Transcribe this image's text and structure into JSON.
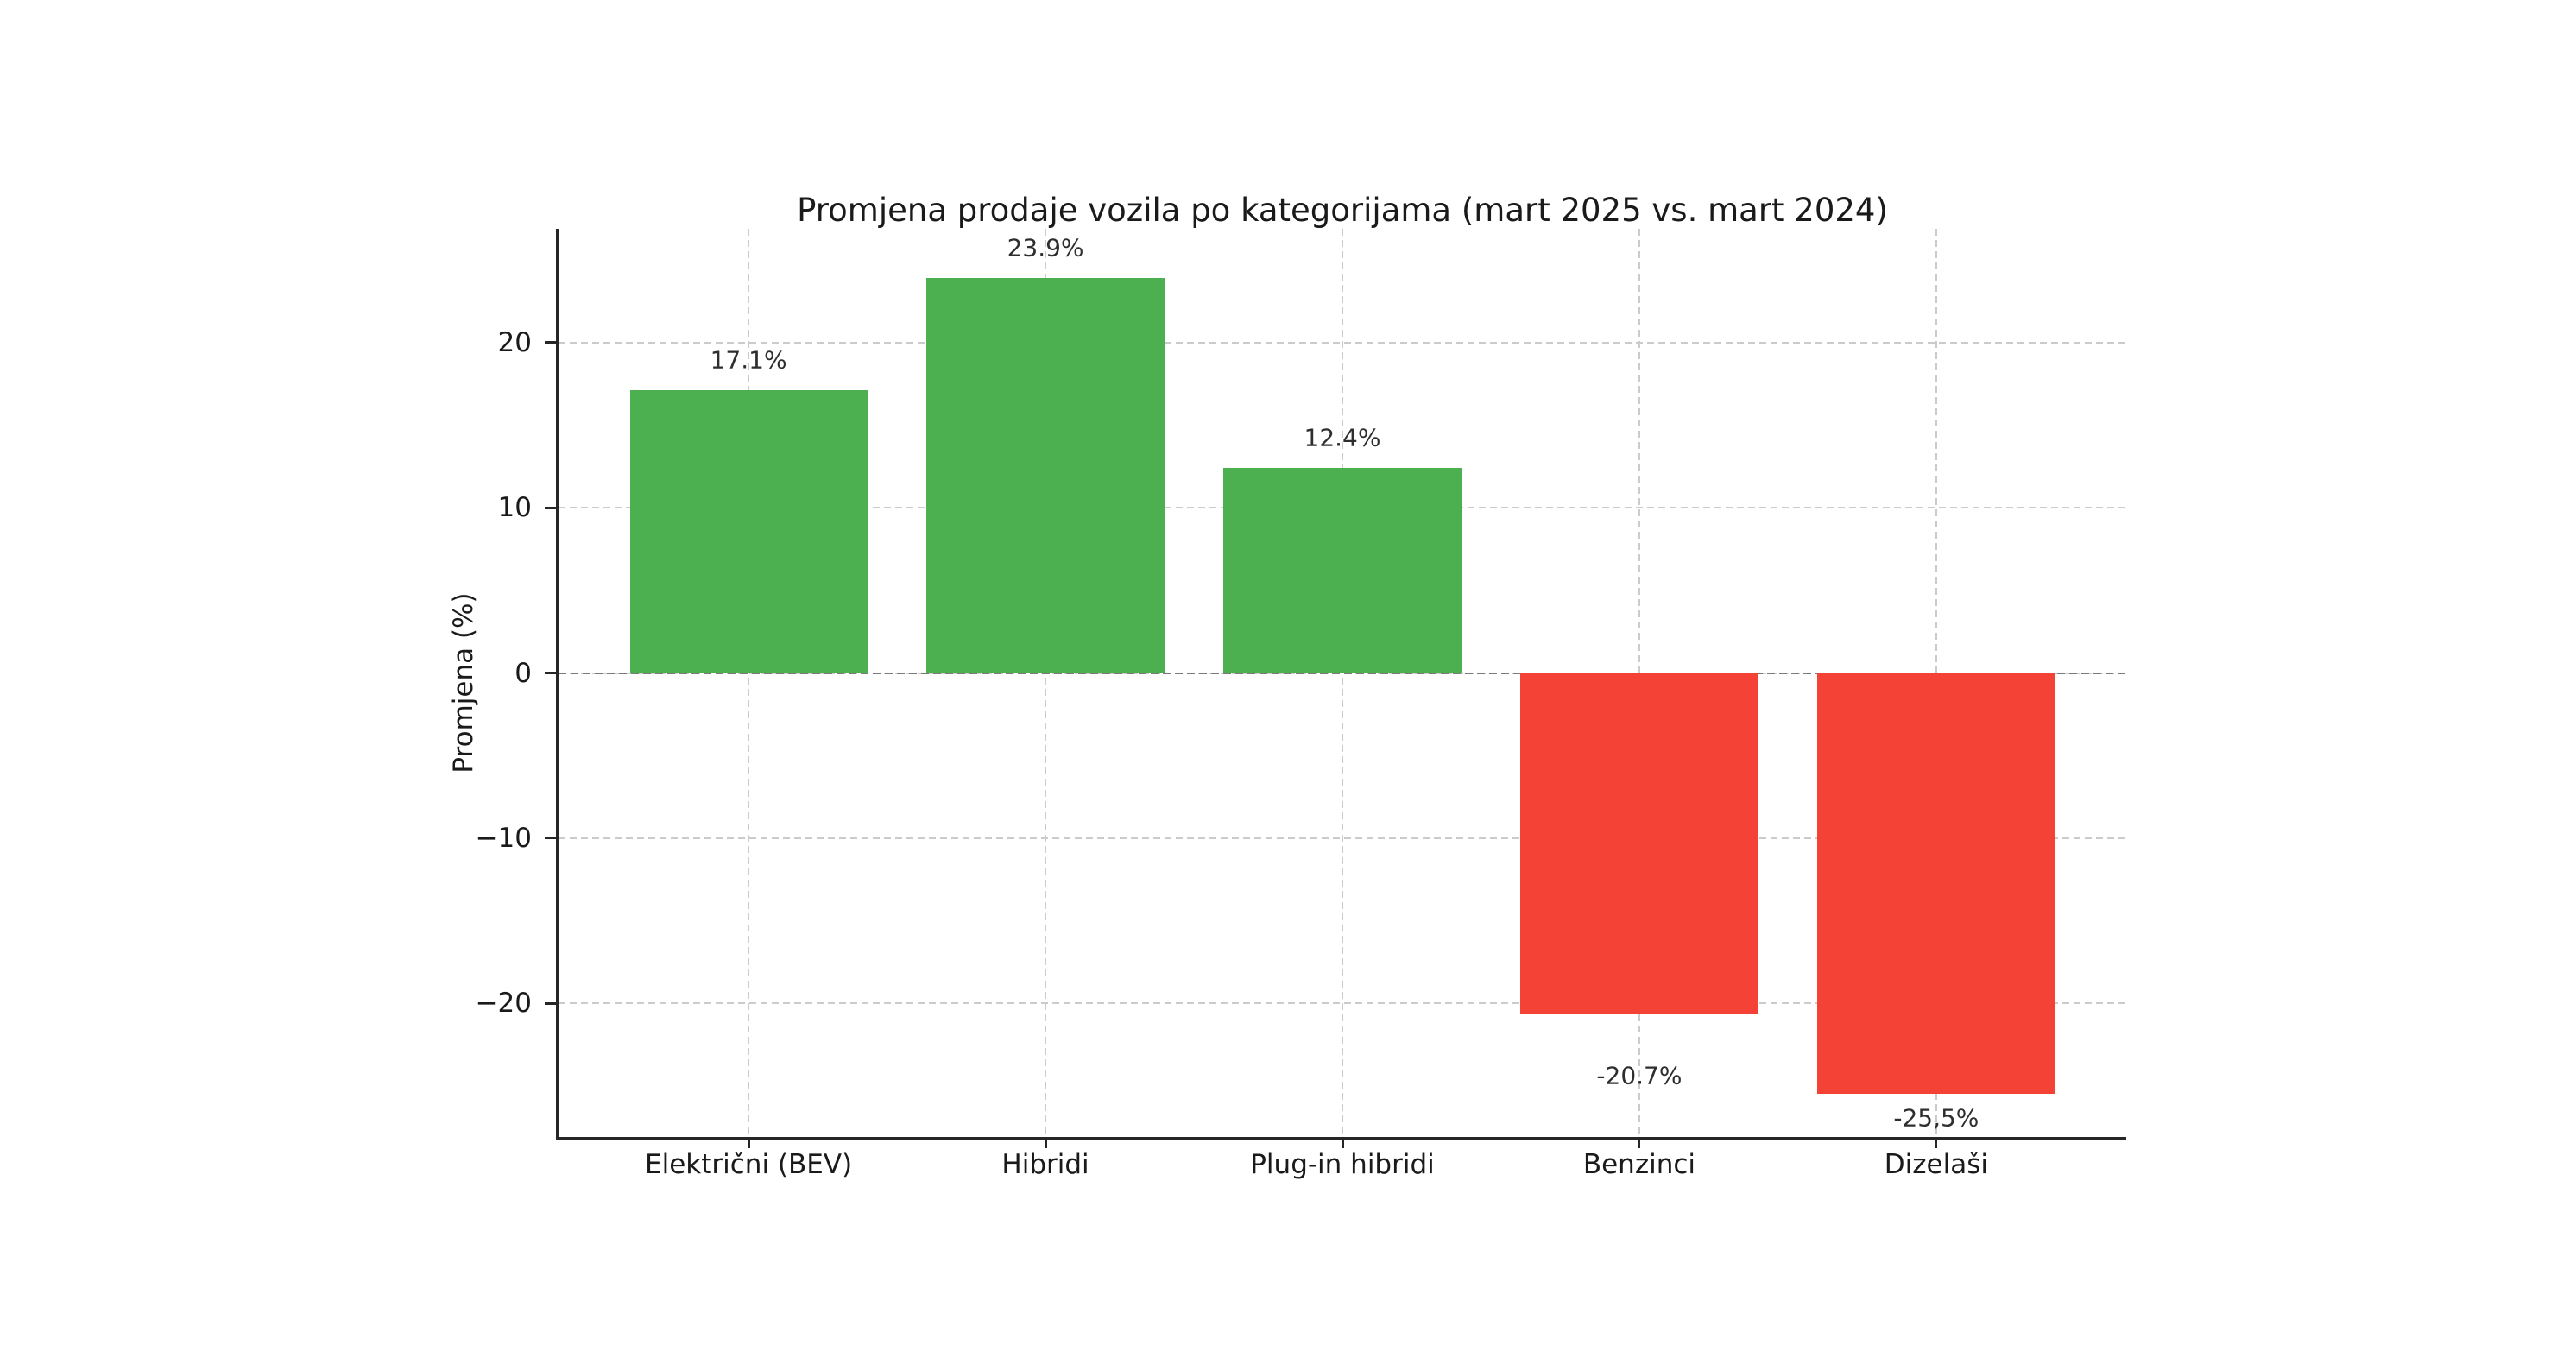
{
  "chart_data": {
    "type": "bar",
    "title": "Promjena prodaje vozila po kategorijama (mart 2025 vs. mart 2024)",
    "xlabel": "",
    "ylabel": "Promjena (%)",
    "categories": [
      "Električni (BEV)",
      "Hibridi",
      "Plug-in hibridi",
      "Benzinci",
      "Dizelaši"
    ],
    "values": [
      17.1,
      23.9,
      12.4,
      -20.7,
      -25.5
    ],
    "bar_labels": [
      "17.1%",
      "23.9%",
      "12.4%",
      "-20.7%",
      "-25,5%"
    ],
    "yticks": [
      20,
      10,
      0,
      -10,
      -20
    ],
    "ytick_labels": [
      "20",
      "10",
      "0",
      "−10",
      "−20"
    ],
    "ylim": [
      -28.1,
      26.9
    ],
    "grid": true,
    "grid_style": "dashed",
    "zero_line": true,
    "legend": "none",
    "colors": {
      "positive": "#4caf50",
      "negative": "#f44336",
      "grid": "#cbcbcb",
      "zero_line": "#7a7a7a",
      "axis": "#262626",
      "text": "#1a1a1a"
    }
  }
}
